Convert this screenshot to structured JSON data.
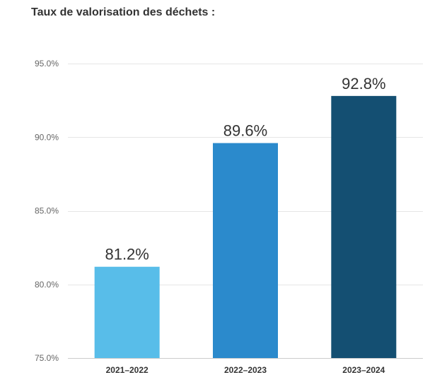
{
  "chart_data": {
    "type": "bar",
    "title": "Taux de valorisation des déchets :",
    "categories": [
      "2021–2022",
      "2022–2023",
      "2023–2024"
    ],
    "values": [
      81.2,
      89.6,
      92.8
    ],
    "data_labels": [
      "81.2%",
      "89.6%",
      "92.8%"
    ],
    "colors": [
      "#58bde9",
      "#2b8acc",
      "#144f72"
    ],
    "ylim": [
      75,
      95
    ],
    "yticks": [
      75,
      80,
      85,
      90,
      95
    ],
    "ytick_labels": [
      "75.0%",
      "80.0%",
      "85.0%",
      "90.0%",
      "95.0%"
    ],
    "xlabel": "",
    "ylabel": "",
    "grid": true,
    "grid_color": "#e6e6e6",
    "axis_color": "#cccccc"
  }
}
